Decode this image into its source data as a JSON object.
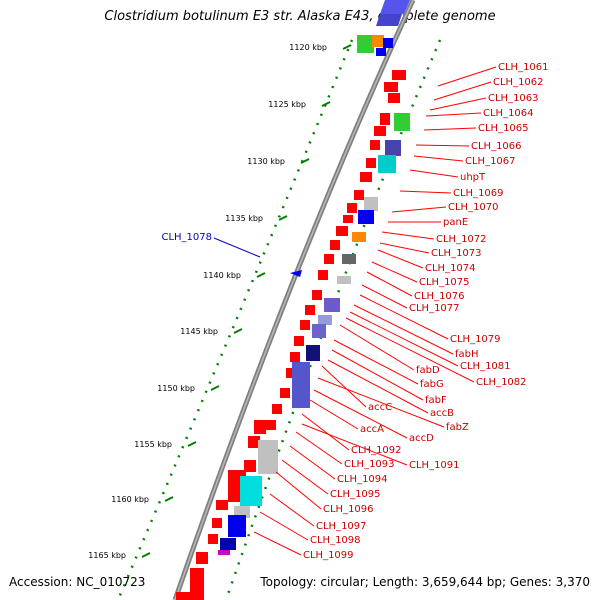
{
  "title": "Clostridium botulinum E3 str. Alaska E43, complete genome",
  "footer": {
    "accession": "Accession: NC_010723",
    "summary": "Topology: circular; Length: 3,659,644 bp; Genes: 3,370"
  },
  "colors": {
    "backbone": "#808080",
    "forward_genes": "#ff0000",
    "label_forward": "#cc0000",
    "label_reverse": "#0000cc",
    "ticks": "#008000"
  },
  "kbp_ticks": [
    "1120 kbp",
    "1125 kbp",
    "1130 kbp",
    "1135 kbp",
    "1140 kbp",
    "1145 kbp",
    "1150 kbp",
    "1155 kbp",
    "1160 kbp",
    "1165 kbp"
  ],
  "gene_labels": [
    "CLH_1061",
    "CLH_1062",
    "CLH_1063",
    "CLH_1064",
    "CLH_1065",
    "CLH_1066",
    "CLH_1067",
    "uhpT",
    "CLH_1069",
    "CLH_1070",
    "panE",
    "CLH_1072",
    "CLH_1073",
    "CLH_1074",
    "CLH_1075",
    "CLH_1076",
    "CLH_1077",
    "CLH_1079",
    "fabH",
    "CLH_1081",
    "fabD",
    "CLH_1082",
    "fabG",
    "fabF",
    "accC",
    "accB",
    "fabZ",
    "accA",
    "accD",
    "CLH_1092",
    "CLH_1091",
    "CLH_1093",
    "CLH_1094",
    "CLH_1095",
    "CLH_1096",
    "CLH_1097",
    "CLH_1098",
    "CLH_1099"
  ],
  "reverse_gene_label": "CLH_1078"
}
